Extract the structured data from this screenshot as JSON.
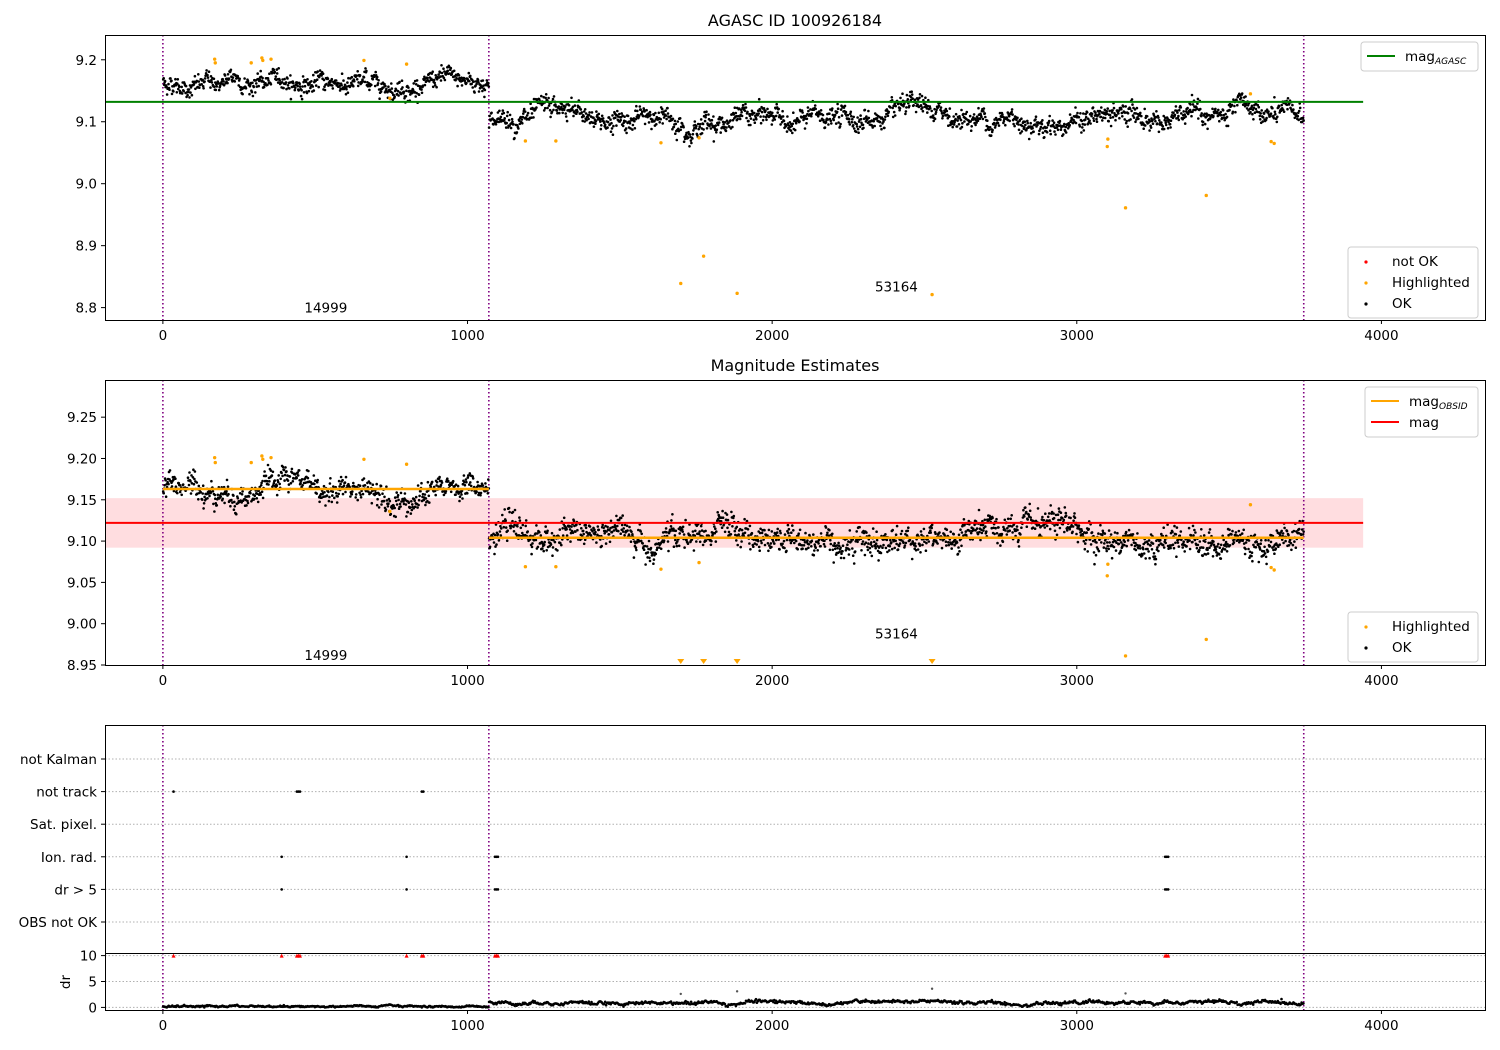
{
  "chart_data": [
    {
      "type": "scatter",
      "title": "AGASC ID 100926184",
      "xlim": [
        -190,
        4340
      ],
      "ylim": [
        8.78,
        9.24
      ],
      "xticks": [
        0,
        1000,
        2000,
        3000,
        4000
      ],
      "xtick_labels": [
        "0",
        "1000",
        "2000",
        "3000",
        "4000"
      ],
      "yticks": [
        8.8,
        8.9,
        9.0,
        9.1,
        9.2
      ],
      "ytick_labels": [
        "8.8",
        "8.9",
        "9.0",
        "9.1",
        "9.2"
      ],
      "vlines": [
        0,
        1070,
        3745
      ],
      "segments": [
        {
          "obsid": "14999",
          "x_start": 0,
          "x_end": 1070,
          "level": 9.163,
          "noise": 0.009
        },
        {
          "obsid": "53164",
          "x_start": 1070,
          "x_end": 3745,
          "level": 9.105,
          "noise": 0.01
        }
      ],
      "obsid_labels": [
        {
          "text": "14999",
          "x": 535,
          "y": 8.8
        },
        {
          "text": "53164",
          "x": 2408,
          "y": 8.834
        }
      ],
      "hlines": [
        {
          "name": "mag_AGASC",
          "y": 9.132,
          "x_start": -190,
          "x_end": 3940,
          "color": "#008000"
        }
      ],
      "highlighted_points": [
        [
          170,
          9.201
        ],
        [
          172,
          9.195
        ],
        [
          290,
          9.195
        ],
        [
          325,
          9.203
        ],
        [
          328,
          9.199
        ],
        [
          355,
          9.201
        ],
        [
          660,
          9.199
        ],
        [
          745,
          9.138
        ],
        [
          800,
          9.193
        ],
        [
          1190,
          9.069
        ],
        [
          1290,
          9.069
        ],
        [
          1635,
          9.066
        ],
        [
          1700,
          8.839
        ],
        [
          1760,
          9.074
        ],
        [
          1775,
          8.883
        ],
        [
          1885,
          8.823
        ],
        [
          2525,
          8.821
        ],
        [
          3100,
          9.06
        ],
        [
          3102,
          9.072
        ],
        [
          3160,
          8.961
        ],
        [
          3425,
          8.981
        ],
        [
          3570,
          9.145
        ],
        [
          3638,
          9.068
        ],
        [
          3648,
          9.065
        ]
      ],
      "legends": [
        {
          "location": "upper right",
          "entries": [
            {
              "kind": "line",
              "color": "#008000",
              "label": "mag",
              "sub": "AGASC"
            }
          ]
        },
        {
          "location": "lower right",
          "entries": [
            {
              "kind": "dot",
              "color": "#ff0000",
              "label": "not OK"
            },
            {
              "kind": "dot",
              "color": "#ffa500",
              "label": "Highlighted"
            },
            {
              "kind": "dot",
              "color": "#000000",
              "label": "OK"
            }
          ]
        }
      ]
    },
    {
      "type": "scatter",
      "title": "Magnitude Estimates",
      "xlim": [
        -190,
        4340
      ],
      "ylim": [
        8.95,
        9.295
      ],
      "xticks": [
        0,
        1000,
        2000,
        3000,
        4000
      ],
      "xtick_labels": [
        "0",
        "1000",
        "2000",
        "3000",
        "4000"
      ],
      "yticks": [
        8.95,
        9.0,
        9.05,
        9.1,
        9.15,
        9.2,
        9.25
      ],
      "ytick_labels": [
        "8.95",
        "9.00",
        "9.05",
        "9.10",
        "9.15",
        "9.20",
        "9.25"
      ],
      "vlines": [
        0,
        1070,
        3745
      ],
      "segments": [
        {
          "obsid": "14999",
          "x_start": 0,
          "x_end": 1070,
          "level": 9.163,
          "noise": 0.009
        },
        {
          "obsid": "53164",
          "x_start": 1070,
          "x_end": 3745,
          "level": 9.105,
          "noise": 0.01
        }
      ],
      "obsid_labels": [
        {
          "text": "14999",
          "x": 535,
          "y": 8.962
        },
        {
          "text": "53164",
          "x": 2408,
          "y": 8.988
        }
      ],
      "band": {
        "y_low": 9.092,
        "y_high": 9.152,
        "x_start": -190,
        "x_end": 3940,
        "color": "#ffdde0"
      },
      "hlines": [
        {
          "name": "mag",
          "y": 9.122,
          "x_start": -190,
          "x_end": 3940,
          "color": "#ff0000"
        }
      ],
      "obsid_mag_lines": [
        {
          "y": 9.163,
          "x_start": 0,
          "x_end": 1070,
          "color": "#ffa500"
        },
        {
          "y": 9.104,
          "x_start": 1070,
          "x_end": 3745,
          "color": "#ffa500"
        }
      ],
      "highlighted_points": [
        [
          170,
          9.201
        ],
        [
          172,
          9.195
        ],
        [
          290,
          9.195
        ],
        [
          325,
          9.203
        ],
        [
          328,
          9.199
        ],
        [
          355,
          9.201
        ],
        [
          660,
          9.199
        ],
        [
          745,
          9.136
        ],
        [
          800,
          9.193
        ],
        [
          1190,
          9.069
        ],
        [
          1290,
          9.069
        ],
        [
          1635,
          9.066
        ],
        [
          1760,
          9.074
        ],
        [
          3100,
          9.058
        ],
        [
          3102,
          9.072
        ],
        [
          3160,
          8.961
        ],
        [
          3425,
          8.981
        ],
        [
          3570,
          9.144
        ],
        [
          3638,
          9.068
        ],
        [
          3648,
          9.065
        ]
      ],
      "out_of_range_markers": [
        1700,
        1775,
        1885,
        2525
      ],
      "legends": [
        {
          "location": "upper right",
          "entries": [
            {
              "kind": "line",
              "color": "#ffa500",
              "label": "mag",
              "sub": "OBSID"
            },
            {
              "kind": "line",
              "color": "#ff0000",
              "label": "mag"
            }
          ]
        },
        {
          "location": "lower right",
          "entries": [
            {
              "kind": "dot",
              "color": "#ffa500",
              "label": "Highlighted"
            },
            {
              "kind": "dot",
              "color": "#000000",
              "label": "OK"
            }
          ]
        }
      ]
    },
    {
      "type": "scatter",
      "title": "",
      "xlim": [
        -190,
        4340
      ],
      "categories": [
        "not Kalman",
        "not track",
        "Sat. pixel.",
        "Ion. rad.",
        "dr > 5",
        "OBS not OK"
      ],
      "vlines": [
        0,
        1070,
        3745
      ],
      "flag_points": {
        "not track": [
          35,
          440,
          445,
          450,
          850,
          855
        ],
        "Ion. rad.": [
          390,
          800,
          1090,
          1095,
          1100,
          3290,
          3295,
          3300
        ],
        "dr > 5": [
          390,
          800,
          1090,
          1095,
          1100,
          3290,
          3295,
          3300
        ]
      }
    },
    {
      "type": "scatter",
      "title": "",
      "xlim": [
        -190,
        4340
      ],
      "ylim": [
        -0.5,
        10.5
      ],
      "ylabel": "dr",
      "yticks": [
        0,
        5,
        10
      ],
      "ytick_labels": [
        "0",
        "5",
        "10"
      ],
      "xticks": [
        0,
        1000,
        2000,
        3000,
        4000
      ],
      "xtick_labels": [
        "0",
        "1000",
        "2000",
        "3000",
        "4000"
      ],
      "segments": [
        {
          "x_start": 0,
          "x_end": 1070,
          "level": 0.2,
          "noise": 0.15
        },
        {
          "x_start": 1070,
          "x_end": 3745,
          "level": 0.9,
          "noise": 0.3
        }
      ],
      "red_points": [
        35,
        390,
        440,
        445,
        450,
        800,
        850,
        855,
        1090,
        1095,
        1100,
        3290,
        3295,
        3300
      ],
      "red_value": 10,
      "outliers": [
        [
          1700,
          2.6
        ],
        [
          1885,
          3.1
        ],
        [
          2525,
          3.6
        ],
        [
          3160,
          2.7
        ]
      ]
    }
  ]
}
